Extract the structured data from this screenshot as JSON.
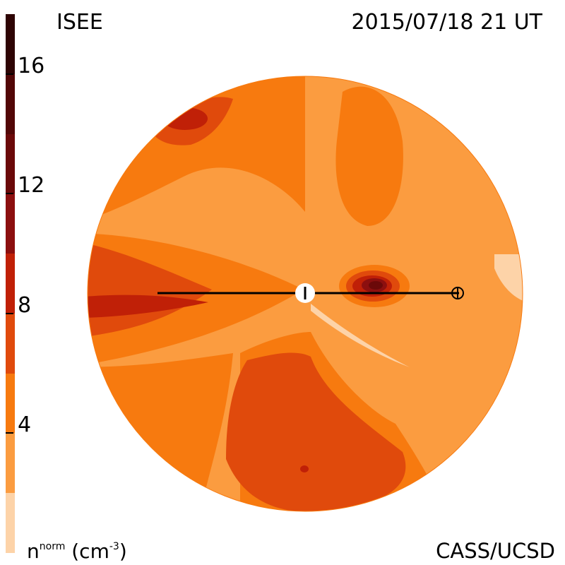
{
  "header": {
    "observatory": "ISEE",
    "timestamp": "2015/07/18 21 UT"
  },
  "footer": {
    "credit": "CASS/UCSD",
    "quantity": "n",
    "quantity_sup": "norm",
    "unit_open": "(cm",
    "unit_sup": "-3",
    "unit_close": ")"
  },
  "colors": {
    "levels": [
      "#fdd3a8",
      "#fb9c40",
      "#f77a0f",
      "#e04a0c",
      "#c02007",
      "#8c0f0f",
      "#6b0909",
      "#3a0505"
    ],
    "sun_marker": "#ffffff",
    "line": "#000000"
  },
  "chart_data": {
    "type": "heatmap",
    "title": "ISEE 2015/07/18 21 UT",
    "colorbar": {
      "label": "n norm (cm-3)",
      "range": [
        0,
        18
      ],
      "level_bounds": [
        0,
        2,
        4,
        6,
        8,
        10,
        12,
        14,
        16,
        18
      ],
      "ticks": [
        4,
        8,
        12,
        16
      ],
      "tick_labels": [
        "4",
        "8",
        "12",
        "16"
      ]
    },
    "markers": [
      {
        "name": "Sun",
        "symbol": "circle-with-tick"
      },
      {
        "name": "Earth",
        "symbol": "circle-plus"
      }
    ]
  }
}
